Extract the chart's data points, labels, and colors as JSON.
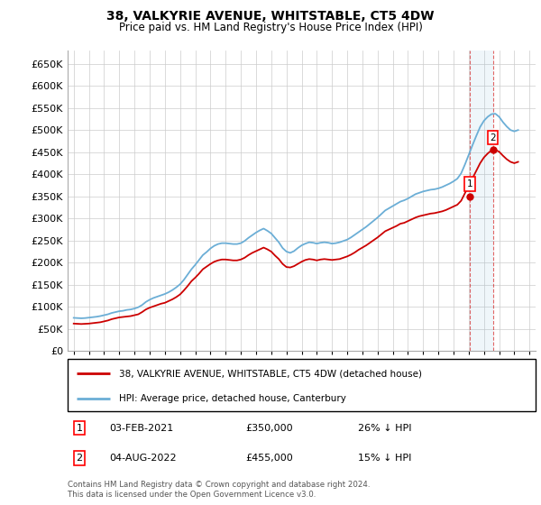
{
  "title": "38, VALKYRIE AVENUE, WHITSTABLE, CT5 4DW",
  "subtitle": "Price paid vs. HM Land Registry's House Price Index (HPI)",
  "ylim": [
    0,
    680000
  ],
  "yticks": [
    0,
    50000,
    100000,
    150000,
    200000,
    250000,
    300000,
    350000,
    400000,
    450000,
    500000,
    550000,
    600000,
    650000
  ],
  "background_color": "#ffffff",
  "grid_color": "#cccccc",
  "hpi_color": "#6baed6",
  "price_color": "#cc0000",
  "legend_label_price": "38, VALKYRIE AVENUE, WHITSTABLE, CT5 4DW (detached house)",
  "legend_label_hpi": "HPI: Average price, detached house, Canterbury",
  "sale1_date": 2021.085,
  "sale1_price": 350000,
  "sale1_label": "1",
  "sale2_date": 2022.585,
  "sale2_price": 455000,
  "sale2_label": "2",
  "footnote": "Contains HM Land Registry data © Crown copyright and database right 2024.\nThis data is licensed under the Open Government Licence v3.0.",
  "hpi_years": [
    1995.0,
    1995.25,
    1995.5,
    1995.75,
    1996.0,
    1996.25,
    1996.5,
    1996.75,
    1997.0,
    1997.25,
    1997.5,
    1997.75,
    1998.0,
    1998.25,
    1998.5,
    1998.75,
    1999.0,
    1999.25,
    1999.5,
    1999.75,
    2000.0,
    2000.25,
    2000.5,
    2000.75,
    2001.0,
    2001.25,
    2001.5,
    2001.75,
    2002.0,
    2002.25,
    2002.5,
    2002.75,
    2003.0,
    2003.25,
    2003.5,
    2003.75,
    2004.0,
    2004.25,
    2004.5,
    2004.75,
    2005.0,
    2005.25,
    2005.5,
    2005.75,
    2006.0,
    2006.25,
    2006.5,
    2006.75,
    2007.0,
    2007.25,
    2007.5,
    2007.75,
    2008.0,
    2008.25,
    2008.5,
    2008.75,
    2009.0,
    2009.25,
    2009.5,
    2009.75,
    2010.0,
    2010.25,
    2010.5,
    2010.75,
    2011.0,
    2011.25,
    2011.5,
    2011.75,
    2012.0,
    2012.25,
    2012.5,
    2012.75,
    2013.0,
    2013.25,
    2013.5,
    2013.75,
    2014.0,
    2014.25,
    2014.5,
    2014.75,
    2015.0,
    2015.25,
    2015.5,
    2015.75,
    2016.0,
    2016.25,
    2016.5,
    2016.75,
    2017.0,
    2017.25,
    2017.5,
    2017.75,
    2018.0,
    2018.25,
    2018.5,
    2018.75,
    2019.0,
    2019.25,
    2019.5,
    2019.75,
    2020.0,
    2020.25,
    2020.5,
    2020.75,
    2021.0,
    2021.25,
    2021.5,
    2021.75,
    2022.0,
    2022.25,
    2022.5,
    2022.75,
    2023.0,
    2023.25,
    2023.5,
    2023.75,
    2024.0,
    2024.25
  ],
  "hpi_values": [
    75000,
    74500,
    74000,
    74500,
    75500,
    76500,
    77500,
    79000,
    81000,
    83000,
    86000,
    88000,
    90000,
    91000,
    93000,
    94000,
    96000,
    99000,
    104000,
    111000,
    116000,
    120000,
    123000,
    126000,
    129000,
    133000,
    138000,
    144000,
    151000,
    161000,
    173000,
    185000,
    195000,
    206000,
    217000,
    224000,
    232000,
    238000,
    242000,
    244000,
    244000,
    243000,
    242000,
    242000,
    244000,
    249000,
    256000,
    262000,
    268000,
    273000,
    277000,
    272000,
    266000,
    256000,
    246000,
    233000,
    225000,
    222000,
    226000,
    233000,
    239000,
    243000,
    246000,
    245000,
    243000,
    245000,
    246000,
    245000,
    243000,
    244000,
    246000,
    249000,
    252000,
    257000,
    263000,
    269000,
    275000,
    281000,
    288000,
    295000,
    302000,
    310000,
    318000,
    323000,
    328000,
    333000,
    338000,
    341000,
    345000,
    350000,
    355000,
    358000,
    361000,
    363000,
    365000,
    366000,
    368000,
    371000,
    375000,
    379000,
    384000,
    390000,
    402000,
    422000,
    444000,
    466000,
    487000,
    507000,
    521000,
    530000,
    536000,
    537000,
    530000,
    518000,
    508000,
    500000,
    497000,
    500000
  ],
  "price_years": [
    1995.0,
    1995.25,
    1995.5,
    1995.75,
    1996.0,
    1996.25,
    1996.5,
    1996.75,
    1997.0,
    1997.25,
    1997.5,
    1997.75,
    1998.0,
    1998.25,
    1998.5,
    1998.75,
    1999.0,
    1999.25,
    1999.5,
    1999.75,
    2000.0,
    2000.25,
    2000.5,
    2000.75,
    2001.0,
    2001.25,
    2001.5,
    2001.75,
    2002.0,
    2002.25,
    2002.5,
    2002.75,
    2003.0,
    2003.25,
    2003.5,
    2003.75,
    2004.0,
    2004.25,
    2004.5,
    2004.75,
    2005.0,
    2005.25,
    2005.5,
    2005.75,
    2006.0,
    2006.25,
    2006.5,
    2006.75,
    2007.0,
    2007.25,
    2007.5,
    2007.75,
    2008.0,
    2008.25,
    2008.5,
    2008.75,
    2009.0,
    2009.25,
    2009.5,
    2009.75,
    2010.0,
    2010.25,
    2010.5,
    2010.75,
    2011.0,
    2011.25,
    2011.5,
    2011.75,
    2012.0,
    2012.25,
    2012.5,
    2012.75,
    2013.0,
    2013.25,
    2013.5,
    2013.75,
    2014.0,
    2014.25,
    2014.5,
    2014.75,
    2015.0,
    2015.25,
    2015.5,
    2015.75,
    2016.0,
    2016.25,
    2016.5,
    2016.75,
    2017.0,
    2017.25,
    2017.5,
    2017.75,
    2018.0,
    2018.25,
    2018.5,
    2018.75,
    2019.0,
    2019.25,
    2019.5,
    2019.75,
    2020.0,
    2020.25,
    2020.5,
    2020.75,
    2021.0,
    2021.25,
    2021.5,
    2021.75,
    2022.0,
    2022.25,
    2022.5,
    2022.75,
    2023.0,
    2023.25,
    2023.5,
    2023.75,
    2024.0,
    2024.25
  ],
  "price_values": [
    62000,
    61500,
    61000,
    61500,
    62000,
    63000,
    64000,
    65000,
    67000,
    69000,
    72000,
    74000,
    76000,
    77000,
    78000,
    79000,
    81000,
    83000,
    88000,
    94000,
    98000,
    101000,
    104000,
    107000,
    109000,
    113000,
    117000,
    122000,
    128000,
    137000,
    147000,
    158000,
    166000,
    175000,
    185000,
    191000,
    197000,
    202000,
    205000,
    207000,
    207000,
    206000,
    205000,
    205000,
    207000,
    211000,
    217000,
    222000,
    226000,
    230000,
    234000,
    230000,
    225000,
    216000,
    208000,
    197000,
    190000,
    189000,
    192000,
    197000,
    202000,
    206000,
    208000,
    207000,
    205000,
    207000,
    208000,
    207000,
    206000,
    207000,
    208000,
    211000,
    214000,
    218000,
    223000,
    229000,
    234000,
    239000,
    245000,
    251000,
    257000,
    264000,
    271000,
    275000,
    279000,
    283000,
    288000,
    290000,
    294000,
    298000,
    302000,
    305000,
    307000,
    309000,
    311000,
    312000,
    314000,
    316000,
    319000,
    323000,
    327000,
    331000,
    340000,
    357000,
    374000,
    391000,
    408000,
    425000,
    438000,
    447000,
    454000,
    455000,
    451000,
    442000,
    434000,
    428000,
    425000,
    428000
  ]
}
